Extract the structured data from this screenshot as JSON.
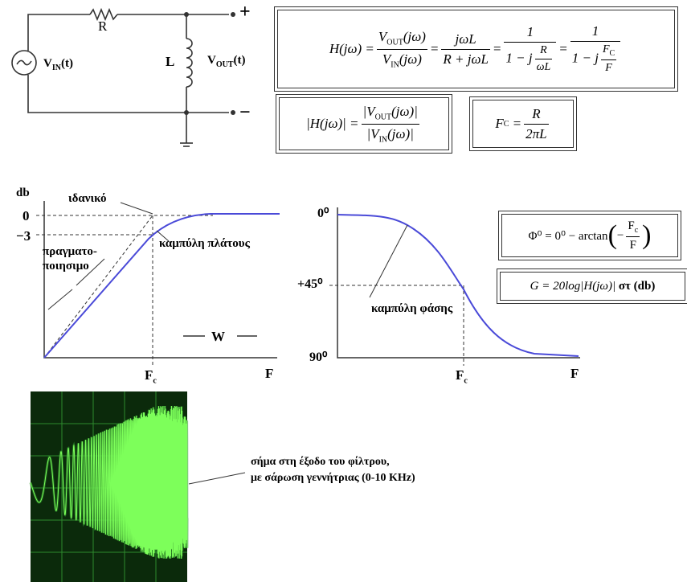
{
  "circuit": {
    "r": "R",
    "l": "L",
    "vin": [
      "V",
      "IN",
      "(t)"
    ],
    "vout": [
      "V",
      "OUT",
      "(t)"
    ],
    "plus": "+",
    "minus": "−"
  },
  "formulas": {
    "transfer": [
      "H(jω) =",
      "V",
      "OUT",
      "(jω)",
      "V",
      "IN",
      "(jω)",
      "=",
      "jωL",
      "R + jωL",
      "=",
      "1",
      "1 − j",
      "R",
      "ωL",
      "=",
      "1",
      "1 − j",
      "F",
      "C",
      "F"
    ],
    "magnitude": [
      "|H(jω)| =",
      "|V",
      "OUT",
      "(jω)|",
      "|V",
      "IN",
      "(jω)|"
    ],
    "cutoff": [
      "F",
      "C",
      "=",
      "R",
      "2πL"
    ],
    "phase": [
      "Φ⁰ = 0⁰ − arctan",
      "(",
      "−",
      "F",
      "c",
      "F",
      ")"
    ],
    "gain": [
      "G = 20log|H(jω)|",
      "στ (db)"
    ]
  },
  "magnitude_plot": {
    "y_label": "db",
    "ticks": [
      "0",
      "−3"
    ],
    "ideal": "ιδανικό",
    "real": [
      "πραγματο-",
      "ποιησιμο"
    ],
    "curve": "καμπύλη πλάτους",
    "w": "W",
    "fc": [
      "F",
      "c"
    ],
    "x_end": "F"
  },
  "phase_plot": {
    "ticks": [
      "0⁰",
      "+45⁰",
      "90⁰"
    ],
    "curve": "καμπύλη φάσης",
    "fc": [
      "F",
      "c"
    ],
    "x_end": "F"
  },
  "oscilloscope": {
    "caption": [
      "σήμα στη έξοδο του φίλτρου,",
      "με σάρωση γεννήτριας (0-10 KHz)"
    ]
  }
}
